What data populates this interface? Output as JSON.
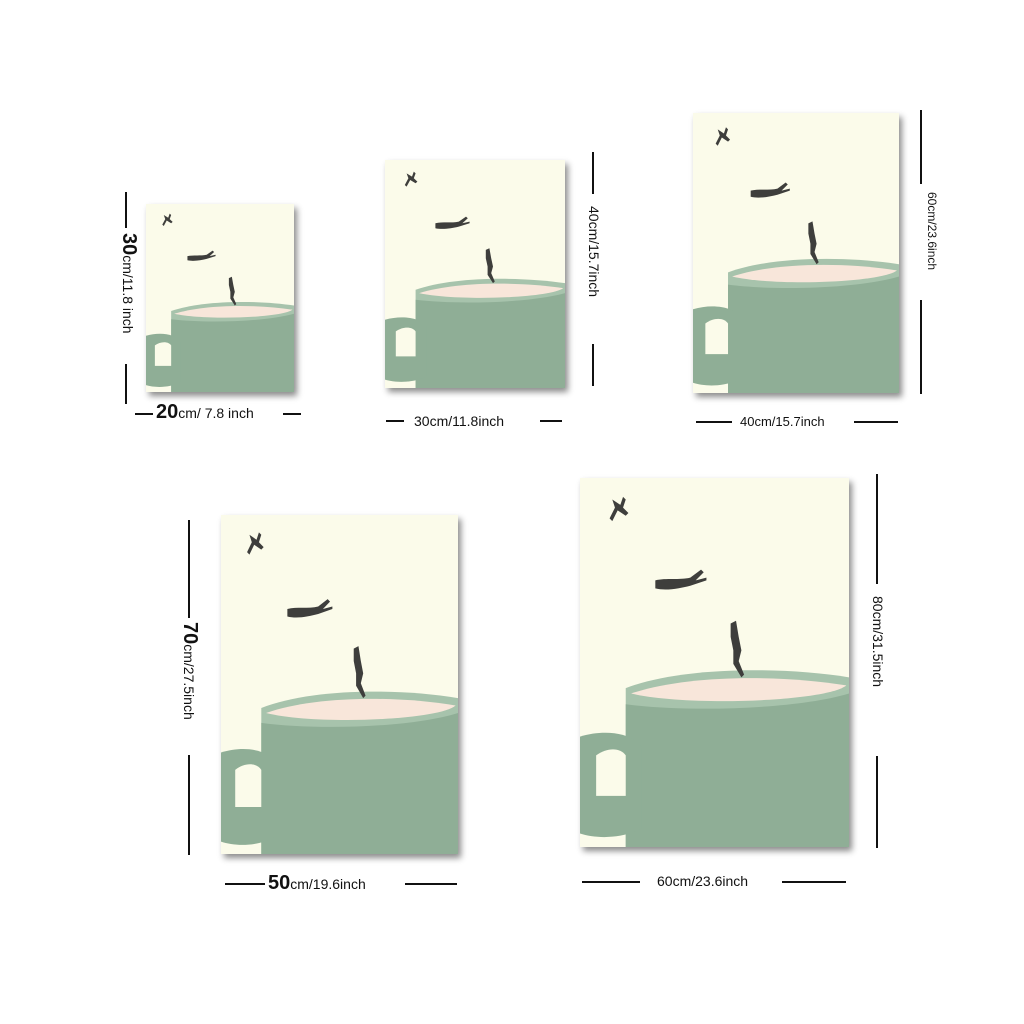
{
  "colors": {
    "background": "#ffffff",
    "canvas": "#fbfbea",
    "mug": "#8fae96",
    "mug_rim": "#a7c3ac",
    "liquid": "#f8e6da",
    "handle_hole": "#fbfbea",
    "diver": "#3e3e3c"
  },
  "sizes": [
    {
      "height_num": "30",
      "height_rest": "cm/11.8 inch",
      "width_num": "20",
      "width_rest": "cm/ 7.8 inch"
    },
    {
      "height_text": "40cm/15.7inch",
      "width_text": "30cm/11.8inch"
    },
    {
      "height_text": "60cm/23.6inch",
      "width_text": "40cm/15.7inch"
    },
    {
      "height_num": "70",
      "height_rest": "cm/27.5inch",
      "width_num": "50",
      "width_rest": "cm/19.6inch"
    },
    {
      "height_text": "80cm/31.5inch",
      "width_text": "60cm/23.6inch"
    }
  ]
}
